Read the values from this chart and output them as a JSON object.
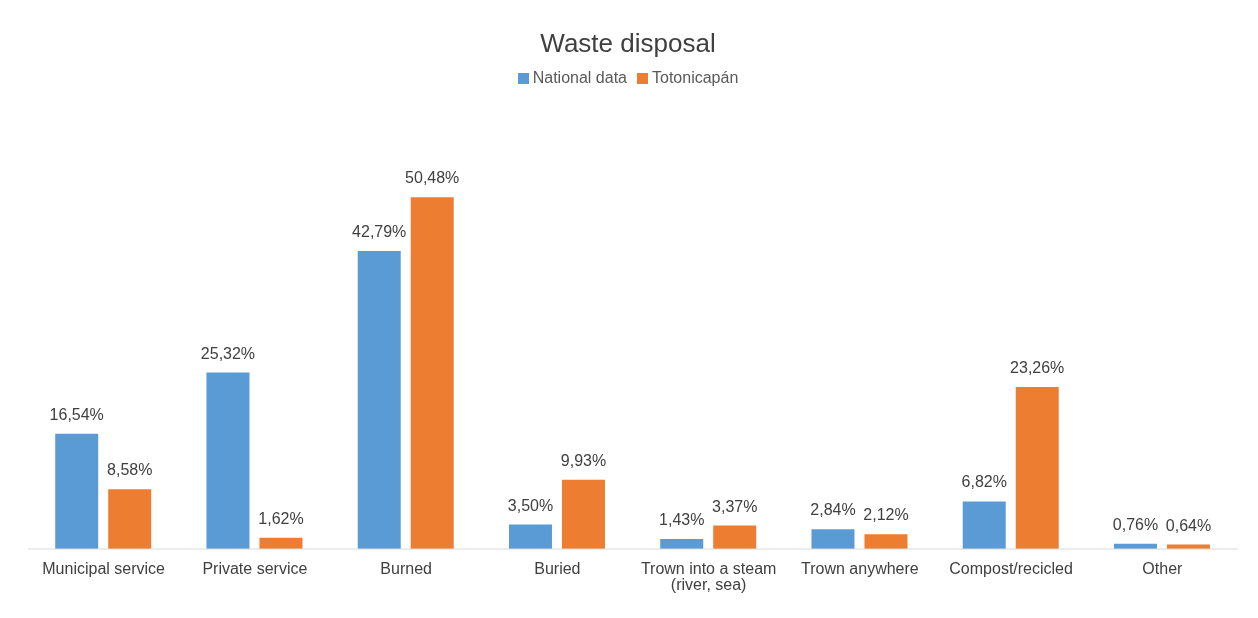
{
  "chart_data": {
    "type": "bar",
    "title": "Waste disposal",
    "categories": [
      "Municipal service",
      "Private service",
      "Burned",
      "Buried",
      "Trown into a steam (river, sea)",
      "Trown anywhere",
      "Compost/recicled",
      "Other"
    ],
    "series": [
      {
        "name": "National data",
        "color": "#5b9bd5",
        "values": [
          16.54,
          25.32,
          42.79,
          3.5,
          1.43,
          2.84,
          6.82,
          0.76
        ],
        "value_labels": [
          "16,54%",
          "25,32%",
          "42,79%",
          "3,50%",
          "1,43%",
          "2,84%",
          "6,82%",
          "0,76%"
        ]
      },
      {
        "name": "Totonicapán",
        "color": "#ed7d31",
        "values": [
          8.58,
          1.62,
          50.48,
          9.93,
          3.37,
          2.12,
          23.26,
          0.64
        ],
        "value_labels": [
          "8,58%",
          "1,62%",
          "50,48%",
          "9,93%",
          "3,37%",
          "2,12%",
          "23,26%",
          "0,64%"
        ]
      }
    ],
    "legend": "top",
    "grid": false
  }
}
